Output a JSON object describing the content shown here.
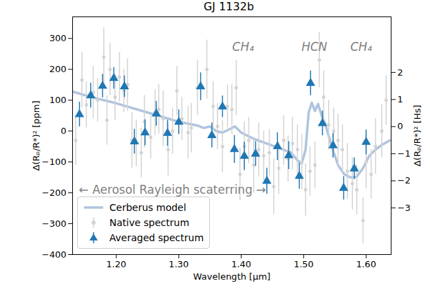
{
  "chart_data": {
    "type": "scatter",
    "title": "GJ 1132b",
    "x_label": "Wavelength [μm]",
    "y_label": "Δ(Rₚ/R*)² [ppm]",
    "y2_label": "Δ(Rₚ/R*)² [Hs]",
    "xlim": [
      1.13,
      1.64
    ],
    "xticks": [
      1.2,
      1.3,
      1.4,
      1.5,
      1.6
    ],
    "ylim": [
      -400,
      370
    ],
    "yticks": [
      -400,
      -300,
      -200,
      -100,
      0,
      100,
      200,
      300
    ],
    "y2lim": [
      -4.72,
      4.05
    ],
    "y2ticks": [
      -3,
      -2,
      -1,
      0,
      1,
      2
    ],
    "legend": "lower left",
    "series": [
      {
        "name": "Cerberus model",
        "type": "line",
        "color": "#b0c4de",
        "x": [
          1.13,
          1.16,
          1.2,
          1.25,
          1.3,
          1.33,
          1.34,
          1.35,
          1.36,
          1.37,
          1.38,
          1.39,
          1.4,
          1.42,
          1.44,
          1.46,
          1.48,
          1.49,
          1.497,
          1.503,
          1.508,
          1.513,
          1.518,
          1.523,
          1.528,
          1.535,
          1.545,
          1.555,
          1.565,
          1.575,
          1.585,
          1.595,
          1.605,
          1.615,
          1.625,
          1.638
        ],
        "values": [
          128,
          110,
          90,
          60,
          30,
          18,
          10,
          15,
          0,
          -5,
          5,
          15,
          -5,
          -25,
          -40,
          -55,
          -70,
          -95,
          -105,
          -60,
          60,
          92,
          65,
          88,
          55,
          20,
          -50,
          -110,
          -140,
          -150,
          -148,
          -120,
          -80,
          -60,
          -45,
          -30
        ]
      },
      {
        "name": "Native spectrum",
        "type": "scatter",
        "marker": "circle",
        "color": "#d3d3d3",
        "x": [
          1.128,
          1.135,
          1.145,
          1.152,
          1.163,
          1.17,
          1.18,
          1.185,
          1.19,
          1.198,
          1.205,
          1.212,
          1.218,
          1.225,
          1.232,
          1.24,
          1.245,
          1.255,
          1.262,
          1.268,
          1.275,
          1.283,
          1.29,
          1.297,
          1.305,
          1.315,
          1.32,
          1.33,
          1.345,
          1.355,
          1.362,
          1.37,
          1.378,
          1.385,
          1.392,
          1.398,
          1.405,
          1.412,
          1.42,
          1.428,
          1.436,
          1.445,
          1.452,
          1.46,
          1.468,
          1.475,
          1.482,
          1.49,
          1.497,
          1.503,
          1.51,
          1.518,
          1.525,
          1.532,
          1.54,
          1.548,
          1.555,
          1.562,
          1.57,
          1.578,
          1.585,
          1.595,
          1.6,
          1.608,
          1.615,
          1.625,
          1.632
        ],
        "values": [
          25,
          -30,
          165,
          85,
          125,
          100,
          240,
          35,
          200,
          110,
          175,
          130,
          150,
          -30,
          -40,
          -70,
          30,
          -20,
          60,
          70,
          40,
          -60,
          0,
          130,
          40,
          -5,
          10,
          140,
          200,
          80,
          15,
          -50,
          80,
          70,
          140,
          -140,
          -50,
          -30,
          -110,
          -60,
          -80,
          -70,
          -180,
          -120,
          -30,
          -90,
          -40,
          -60,
          -100,
          -190,
          -130,
          -110,
          230,
          110,
          20,
          0,
          -30,
          -60,
          -130,
          -170,
          -190,
          -290,
          -100,
          -140,
          -50,
          0,
          100
        ],
        "errors": [
          70,
          80,
          90,
          75,
          85,
          70,
          95,
          80,
          85,
          75,
          80,
          70,
          85,
          90,
          75,
          80,
          85,
          70,
          75,
          80,
          90,
          85,
          75,
          80,
          70,
          85,
          80,
          90,
          95,
          80,
          75,
          85,
          70,
          80,
          90,
          85,
          80,
          75,
          90,
          85,
          80,
          75,
          90,
          85,
          80,
          75,
          85,
          80,
          90,
          85,
          80,
          75,
          90,
          85,
          80,
          75,
          85,
          80,
          90,
          85,
          80,
          75,
          85,
          80,
          90,
          85,
          80
        ]
      },
      {
        "name": "Averaged spectrum",
        "type": "scatter",
        "marker": "triangle",
        "color": "#1f77b4",
        "x": [
          1.141,
          1.159,
          1.178,
          1.196,
          1.213,
          1.229,
          1.246,
          1.264,
          1.282,
          1.3,
          1.335,
          1.353,
          1.37,
          1.389,
          1.405,
          1.423,
          1.441,
          1.458,
          1.476,
          1.493,
          1.511,
          1.53,
          1.547,
          1.564,
          1.581,
          1.6
        ],
        "values": [
          54,
          115,
          146,
          171,
          144,
          -34,
          -5,
          56,
          -7,
          29,
          144,
          -14,
          79,
          -59,
          -81,
          -74,
          -162,
          -50,
          -79,
          -146,
          155,
          25,
          -47,
          -185,
          -122,
          -36
        ],
        "errors": [
          40,
          40,
          38,
          35,
          35,
          40,
          42,
          40,
          42,
          40,
          45,
          40,
          35,
          45,
          45,
          40,
          42,
          45,
          45,
          42,
          40,
          40,
          40,
          38,
          35,
          40
        ]
      }
    ],
    "annotations": [
      {
        "text": "CH₄",
        "x": 1.403,
        "y": 272
      },
      {
        "text": "HCN",
        "x": 1.517,
        "y": 272
      },
      {
        "text": "CH₄",
        "x": 1.592,
        "y": 272
      },
      {
        "text": "← Aerosol Rayleigh scaterring →",
        "x": 1.14,
        "y": -190
      }
    ]
  }
}
